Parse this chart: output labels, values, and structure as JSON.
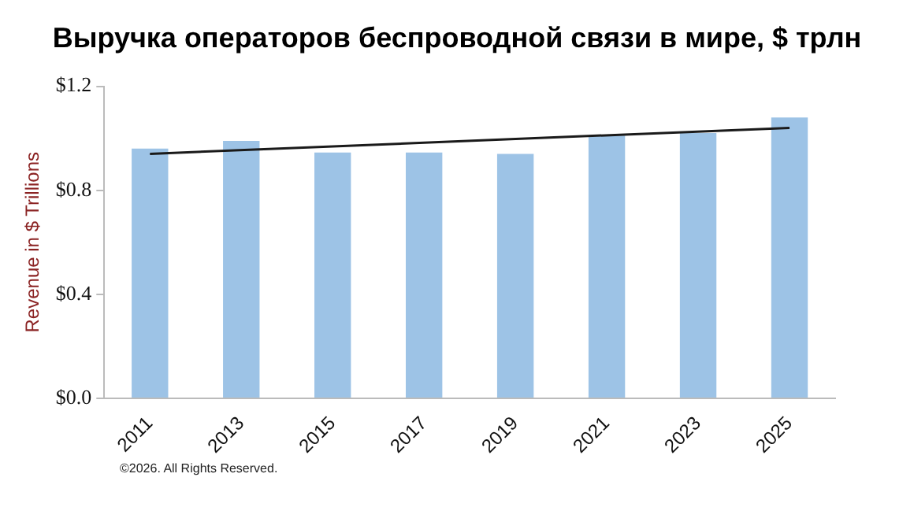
{
  "chart_data": {
    "type": "bar",
    "title": "Выручка операторов беспроводной связи в мире, $ трлн",
    "ylabel": "Revenue in $ Trillions",
    "categories": [
      "2011",
      "2013",
      "2015",
      "2017",
      "2019",
      "2021",
      "2023",
      "2025"
    ],
    "series": [
      {
        "color": "#9dc3e6",
        "values": [
          0.96,
          0.99,
          0.945,
          0.945,
          0.94,
          1.01,
          1.02,
          1.08
        ]
      },
      {
        "type": "line",
        "color": "#1a1a1a",
        "values": [
          0.94,
          null,
          null,
          null,
          null,
          null,
          null,
          1.04
        ]
      }
    ],
    "ylim": [
      0,
      1.2
    ],
    "yticks": [
      {
        "value": 0,
        "label": "$0.0"
      },
      {
        "value": 0.4,
        "label": "$0.4"
      },
      {
        "value": 0.8,
        "label": "$0.8"
      },
      {
        "value": 1.2,
        "label": "$1.2"
      }
    ],
    "grid": false,
    "legend": false,
    "annotations": [
      "©2026. All Rights Reserved."
    ]
  }
}
